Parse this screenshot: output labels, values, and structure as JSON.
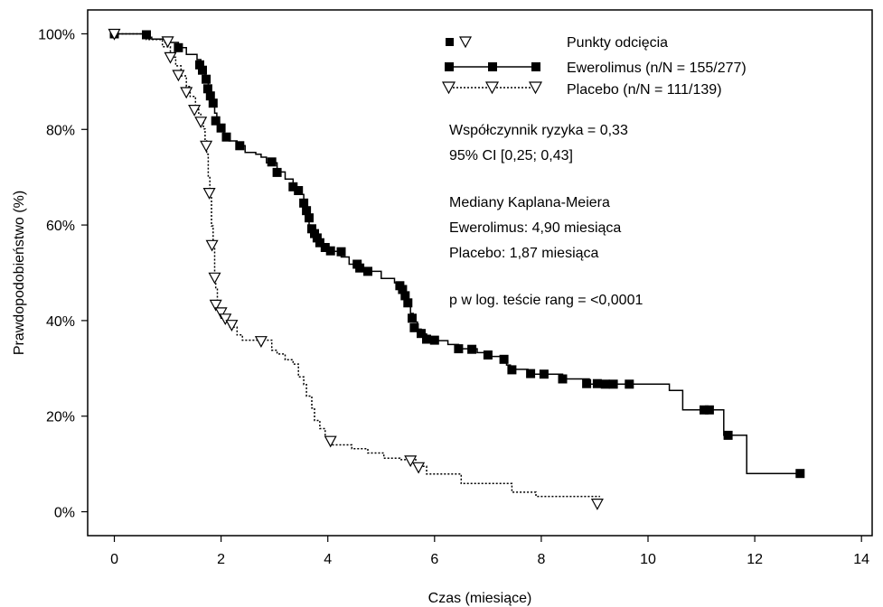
{
  "chart_data": {
    "type": "line",
    "xlabel": "Czas (miesiące)",
    "ylabel": "Prawdopodobieństwo (%)",
    "xlim": [
      -0.5,
      14.2
    ],
    "ylim": [
      -5,
      105
    ],
    "x_ticks": [
      {
        "value": 0,
        "label": "0"
      },
      {
        "value": 2,
        "label": "2"
      },
      {
        "value": 4,
        "label": "4"
      },
      {
        "value": 6,
        "label": "6"
      },
      {
        "value": 8,
        "label": "8"
      },
      {
        "value": 10,
        "label": "10"
      },
      {
        "value": 12,
        "label": "12"
      },
      {
        "value": 14,
        "label": "14"
      }
    ],
    "y_ticks": [
      {
        "value": 0,
        "label": "0%"
      },
      {
        "value": 20,
        "label": "20%"
      },
      {
        "value": 40,
        "label": "40%"
      },
      {
        "value": 60,
        "label": "60%"
      },
      {
        "value": 80,
        "label": "80%"
      },
      {
        "value": 100,
        "label": "100%"
      }
    ],
    "grid": false,
    "legend_position": "top-right",
    "legend": {
      "censor_label": "Punkty odcięcia",
      "entries": [
        {
          "series": 0,
          "label": "Ewerolimus (n/N = 155/277)"
        },
        {
          "series": 1,
          "label": "Placebo (n/N = 111/139)"
        }
      ]
    },
    "annotations": [
      "Współczynnik ryzyka = 0,33",
      "95% CI [0,25; 0,43]",
      "",
      "Mediany Kaplana-Meiera",
      "Ewerolimus: 4,90 miesiąca",
      "Placebo: 1,87 miesiąca",
      "",
      "p w log. teście rang = <0,0001"
    ],
    "series": [
      {
        "name": "Ewerolimus",
        "line_style": "solid",
        "marker": "filled-square",
        "color": "#000000",
        "steps": [
          [
            0,
            100
          ],
          [
            0.6,
            99.3
          ],
          [
            0.7,
            98.9
          ],
          [
            0.95,
            98.2
          ],
          [
            1.2,
            97.1
          ],
          [
            1.35,
            95.7
          ],
          [
            1.55,
            94.6
          ],
          [
            1.62,
            93.5
          ],
          [
            1.67,
            92.3
          ],
          [
            1.7,
            91.2
          ],
          [
            1.73,
            89.8
          ],
          [
            1.76,
            88.4
          ],
          [
            1.78,
            87.4
          ],
          [
            1.8,
            86.3
          ],
          [
            1.85,
            84.8
          ],
          [
            1.88,
            83.4
          ],
          [
            1.92,
            81.6
          ],
          [
            1.97,
            80.1
          ],
          [
            2.05,
            78.8
          ],
          [
            2.15,
            77.6
          ],
          [
            2.3,
            76.6
          ],
          [
            2.45,
            75.2
          ],
          [
            2.65,
            74.8
          ],
          [
            2.75,
            74.2
          ],
          [
            2.85,
            73.0
          ],
          [
            3.05,
            71.1
          ],
          [
            3.2,
            69.6
          ],
          [
            3.35,
            68.0
          ],
          [
            3.45,
            67.2
          ],
          [
            3.5,
            66.4
          ],
          [
            3.55,
            64.5
          ],
          [
            3.58,
            62.9
          ],
          [
            3.62,
            61.5
          ],
          [
            3.65,
            60.0
          ],
          [
            3.68,
            59.1
          ],
          [
            3.72,
            58.2
          ],
          [
            3.76,
            57.4
          ],
          [
            3.8,
            56.6
          ],
          [
            3.85,
            55.9
          ],
          [
            3.9,
            55.3
          ],
          [
            4.0,
            54.5
          ],
          [
            4.25,
            53.3
          ],
          [
            4.4,
            51.8
          ],
          [
            4.55,
            51.1
          ],
          [
            4.75,
            50.3
          ],
          [
            5.0,
            48.8
          ],
          [
            5.25,
            47.9
          ],
          [
            5.35,
            47.3
          ],
          [
            5.4,
            46.5
          ],
          [
            5.45,
            45.1
          ],
          [
            5.5,
            43.9
          ],
          [
            5.55,
            41.5
          ],
          [
            5.6,
            39.7
          ],
          [
            5.68,
            38.2
          ],
          [
            5.75,
            37.2
          ],
          [
            5.85,
            36.5
          ],
          [
            5.95,
            35.8
          ],
          [
            6.25,
            35.0
          ],
          [
            6.45,
            34.1
          ],
          [
            6.8,
            33.3
          ],
          [
            7.0,
            32.5
          ],
          [
            7.25,
            31.6
          ],
          [
            7.35,
            30.7
          ],
          [
            7.42,
            29.8
          ],
          [
            7.75,
            28.8
          ],
          [
            8.4,
            27.8
          ],
          [
            8.9,
            26.7
          ],
          [
            10.4,
            25.4
          ],
          [
            10.65,
            21.3
          ],
          [
            11.35,
            21.3
          ],
          [
            11.42,
            16.0
          ],
          [
            11.85,
            8.0
          ],
          [
            12.9,
            8.0
          ]
        ],
        "censor_points": [
          [
            0,
            100
          ],
          [
            0.6,
            99.8
          ],
          [
            1.2,
            97.1
          ],
          [
            1.6,
            93.5
          ],
          [
            1.65,
            92.4
          ],
          [
            1.72,
            90.5
          ],
          [
            1.75,
            88.5
          ],
          [
            1.8,
            87.0
          ],
          [
            1.85,
            85.5
          ],
          [
            1.9,
            81.8
          ],
          [
            2.0,
            80.3
          ],
          [
            2.1,
            78.4
          ],
          [
            2.35,
            76.6
          ],
          [
            2.95,
            73.2
          ],
          [
            3.05,
            71.0
          ],
          [
            3.35,
            68.0
          ],
          [
            3.45,
            67.2
          ],
          [
            3.55,
            64.6
          ],
          [
            3.6,
            63.0
          ],
          [
            3.65,
            61.5
          ],
          [
            3.7,
            59.2
          ],
          [
            3.75,
            58.2
          ],
          [
            3.8,
            57.3
          ],
          [
            3.85,
            56.3
          ],
          [
            3.95,
            55.3
          ],
          [
            4.05,
            54.6
          ],
          [
            4.25,
            54.4
          ],
          [
            4.55,
            51.8
          ],
          [
            4.6,
            51.0
          ],
          [
            4.75,
            50.3
          ],
          [
            5.35,
            47.3
          ],
          [
            5.4,
            46.5
          ],
          [
            5.45,
            45.2
          ],
          [
            5.5,
            43.7
          ],
          [
            5.58,
            40.5
          ],
          [
            5.62,
            38.5
          ],
          [
            5.75,
            37.3
          ],
          [
            5.85,
            36.1
          ],
          [
            6.0,
            35.9
          ],
          [
            6.45,
            34.1
          ],
          [
            6.7,
            34.0
          ],
          [
            7.0,
            32.8
          ],
          [
            7.3,
            31.9
          ],
          [
            7.45,
            29.7
          ],
          [
            7.8,
            28.9
          ],
          [
            8.05,
            28.8
          ],
          [
            8.4,
            27.8
          ],
          [
            8.85,
            26.8
          ],
          [
            9.05,
            26.8
          ],
          [
            9.2,
            26.7
          ],
          [
            9.35,
            26.7
          ],
          [
            9.65,
            26.7
          ],
          [
            11.05,
            21.3
          ],
          [
            11.15,
            21.3
          ],
          [
            11.5,
            16.0
          ],
          [
            12.85,
            8.0
          ]
        ]
      },
      {
        "name": "Placebo",
        "line_style": "dotted",
        "marker": "open-triangle-down",
        "color": "#000000",
        "steps": [
          [
            0,
            100
          ],
          [
            0.6,
            98.8
          ],
          [
            0.9,
            97.3
          ],
          [
            1.05,
            95.1
          ],
          [
            1.15,
            93.3
          ],
          [
            1.25,
            91.2
          ],
          [
            1.35,
            89.0
          ],
          [
            1.42,
            86.9
          ],
          [
            1.52,
            84.8
          ],
          [
            1.58,
            83.4
          ],
          [
            1.62,
            82.2
          ],
          [
            1.67,
            80.1
          ],
          [
            1.7,
            77.9
          ],
          [
            1.73,
            74.8
          ],
          [
            1.76,
            70.1
          ],
          [
            1.79,
            66.0
          ],
          [
            1.82,
            59.8
          ],
          [
            1.85,
            55.3
          ],
          [
            1.88,
            49.2
          ],
          [
            1.9,
            46.7
          ],
          [
            1.93,
            42.6
          ],
          [
            2.0,
            40.5
          ],
          [
            2.1,
            39.7
          ],
          [
            2.15,
            38.6
          ],
          [
            2.3,
            37.0
          ],
          [
            2.4,
            35.9
          ],
          [
            2.9,
            35.9
          ],
          [
            2.95,
            33.8
          ],
          [
            3.05,
            33.0
          ],
          [
            3.2,
            31.8
          ],
          [
            3.35,
            30.9
          ],
          [
            3.45,
            28.2
          ],
          [
            3.55,
            26.6
          ],
          [
            3.6,
            24.2
          ],
          [
            3.7,
            21.7
          ],
          [
            3.75,
            19.1
          ],
          [
            3.85,
            17.4
          ],
          [
            3.95,
            15.6
          ],
          [
            4.05,
            14.0
          ],
          [
            4.45,
            13.2
          ],
          [
            4.75,
            12.3
          ],
          [
            5.05,
            11.2
          ],
          [
            5.35,
            10.9
          ],
          [
            5.65,
            9.5
          ],
          [
            5.85,
            7.9
          ],
          [
            6.5,
            5.9
          ],
          [
            7.45,
            4.1
          ],
          [
            7.9,
            3.2
          ],
          [
            9.1,
            3.2
          ]
        ],
        "censor_points": [
          [
            0,
            100
          ],
          [
            1.0,
            98.4
          ],
          [
            1.05,
            95.1
          ],
          [
            1.2,
            91.4
          ],
          [
            1.35,
            87.8
          ],
          [
            1.5,
            84.1
          ],
          [
            1.62,
            81.6
          ],
          [
            1.72,
            76.6
          ],
          [
            1.78,
            66.7
          ],
          [
            1.83,
            55.8
          ],
          [
            1.88,
            49.0
          ],
          [
            1.9,
            43.3
          ],
          [
            2.0,
            41.7
          ],
          [
            2.08,
            40.4
          ],
          [
            2.2,
            39.1
          ],
          [
            2.75,
            35.7
          ],
          [
            4.05,
            14.8
          ],
          [
            5.55,
            10.7
          ],
          [
            5.7,
            9.3
          ],
          [
            9.05,
            1.7
          ]
        ]
      }
    ]
  }
}
